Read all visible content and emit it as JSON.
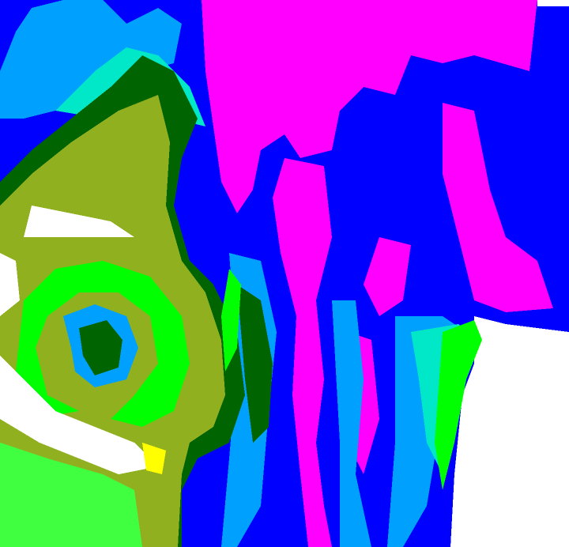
{
  "image": {
    "kind": "false-color satellite cloud classification",
    "palette": {
      "blue": "#0000ff",
      "light_blue": "#00a0ff",
      "cyan": "#00e8c8",
      "magenta": "#ff00ff",
      "olive": "#90b020",
      "dark_green": "#006400",
      "bright_green": "#00ff00",
      "yellow": "#ffff00",
      "white": "#ffffff"
    }
  }
}
